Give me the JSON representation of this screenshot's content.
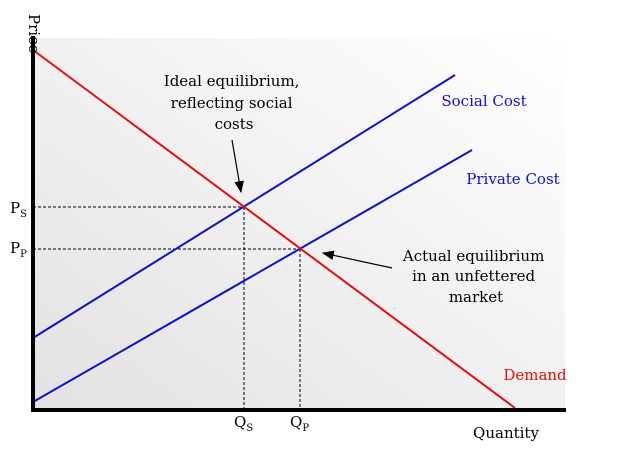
{
  "axes": {
    "y_label": "Price",
    "x_label": "Quantity"
  },
  "curves": [
    {
      "label": "Social Cost"
    },
    {
      "label": "Private Cost"
    },
    {
      "label": "Demand"
    }
  ],
  "annotations": [
    {
      "lines": [
        "Ideal equilibrium,",
        "reflecting social",
        "costs"
      ]
    },
    {
      "lines": [
        "Actual equilibrium",
        "in an unfettered",
        "market"
      ]
    }
  ],
  "price_marks": [
    {
      "main": "P",
      "sub": "S"
    },
    {
      "main": "P",
      "sub": "P"
    }
  ],
  "quantity_marks": [
    {
      "main": "Q",
      "sub": "S"
    },
    {
      "main": "Q",
      "sub": "P"
    }
  ]
}
